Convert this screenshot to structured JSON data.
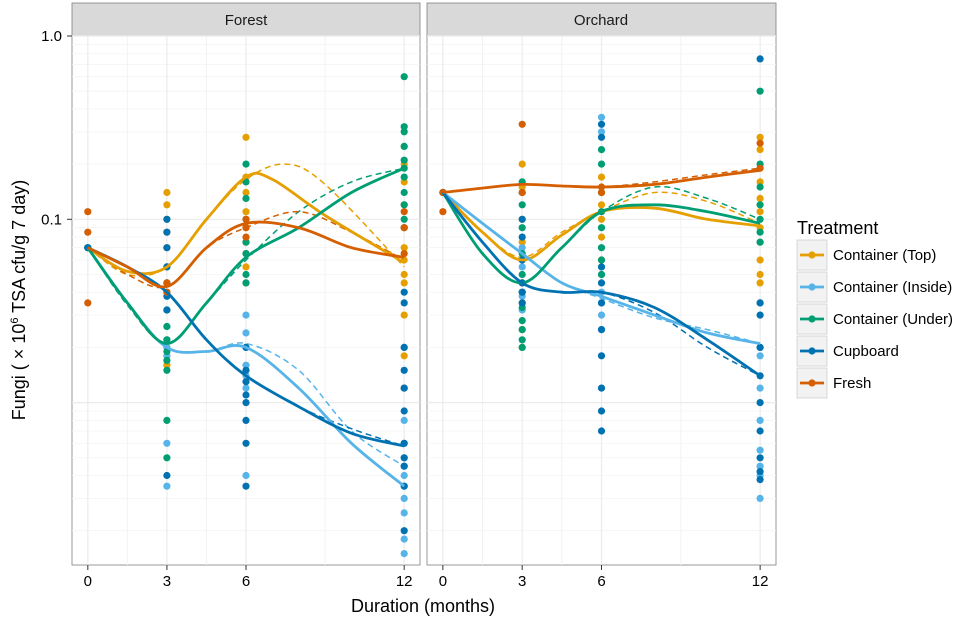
{
  "chart_data": {
    "type": "scatter",
    "facets": [
      "Forest",
      "Orchard"
    ],
    "xlabel": "Duration (months)",
    "ylabel_prefix": "Fungi ( × 10",
    "ylabel_exponent": "6",
    "ylabel_suffix": " TSA cfu/g 7 day)",
    "x_ticks": [
      0,
      3,
      6,
      12
    ],
    "y_ticks": [
      1.0,
      0.1
    ],
    "y_tick_labels": [
      "1.0",
      "0.1"
    ],
    "y_scale": "log",
    "xlim": [
      -0.6,
      12.6
    ],
    "ylim": [
      0.0013,
      1.0
    ],
    "grid": true,
    "legend_title": "Treatment",
    "legend_position": "right",
    "series": [
      {
        "name": "Container (Top)",
        "color": "#E69F00",
        "points": {
          "Forest": {
            "0": [
              0.07
            ],
            "3": [
              0.14,
              0.12,
              0.1,
              0.085,
              0.07,
              0.055,
              0.045,
              0.02,
              0.018,
              0.016
            ],
            "6": [
              0.28,
              0.17,
              0.14,
              0.11,
              0.09,
              0.075,
              0.065,
              0.055,
              0.045
            ],
            "12": [
              0.25,
              0.2,
              0.16,
              0.12,
              0.09,
              0.07,
              0.06,
              0.05,
              0.045,
              0.03,
              0.018,
              0.012
            ]
          },
          "Orchard": {
            "0": [
              0.14
            ],
            "3": [
              0.2,
              0.15,
              0.1,
              0.075,
              0.06,
              0.045,
              0.035,
              0.025,
              0.02
            ],
            "6": [
              0.17,
              0.14,
              0.12,
              0.1,
              0.08,
              0.06,
              0.05
            ],
            "12": [
              0.28,
              0.24,
              0.16,
              0.13,
              0.11,
              0.09,
              0.075,
              0.06,
              0.05,
              0.045
            ]
          }
        },
        "fit_solid": [
          [
            0,
            0.07
          ],
          [
            1.5,
            0.052
          ],
          [
            3,
            0.055
          ],
          [
            4.5,
            0.1
          ],
          [
            6,
            0.17
          ],
          [
            7,
            0.165
          ],
          [
            9,
            0.105
          ],
          [
            12,
            0.058
          ]
        ],
        "fit_dashed": [
          [
            0,
            0.07
          ],
          [
            1.5,
            0.05
          ],
          [
            3,
            0.055
          ],
          [
            4.5,
            0.1
          ],
          [
            6,
            0.165
          ],
          [
            7.5,
            0.2
          ],
          [
            9,
            0.155
          ],
          [
            12,
            0.055
          ]
        ],
        "fit_solid_orchard": [
          [
            0,
            0.14
          ],
          [
            1.5,
            0.085
          ],
          [
            3,
            0.06
          ],
          [
            4.5,
            0.082
          ],
          [
            6,
            0.11
          ],
          [
            8,
            0.115
          ],
          [
            10,
            0.1
          ],
          [
            12,
            0.092
          ]
        ],
        "fit_dashed_orchard": [
          [
            0,
            0.14
          ],
          [
            1.5,
            0.085
          ],
          [
            3,
            0.062
          ],
          [
            4.5,
            0.085
          ],
          [
            6,
            0.11
          ],
          [
            8,
            0.14
          ],
          [
            10,
            0.125
          ],
          [
            12,
            0.095
          ]
        ]
      },
      {
        "name": "Container (Inside)",
        "color": "#56B4E9",
        "points": {
          "Forest": {
            "0": [
              0.07
            ],
            "3": [
              0.04,
              0.032,
              0.026,
              0.022,
              0.02,
              0.018,
              0.006,
              0.0035
            ],
            "6": [
              0.03,
              0.024,
              0.02,
              0.016,
              0.014,
              0.012,
              0.004
            ],
            "12": [
              0.02,
              0.012,
              0.008,
              0.006,
              0.005,
              0.0045,
              0.004,
              0.0035,
              0.003,
              0.0025,
              0.0018,
              0.0015
            ]
          },
          "Orchard": {
            "0": [
              0.14
            ],
            "3": [
              0.07,
              0.055,
              0.045,
              0.038,
              0.032
            ],
            "6": [
              0.36,
              0.3,
              0.05,
              0.04,
              0.035,
              0.03,
              0.025
            ],
            "12": [
              0.035,
              0.02,
              0.018,
              0.012,
              0.008,
              0.0055,
              0.0045,
              0.004,
              0.003
            ]
          }
        },
        "fit_solid": [
          [
            0,
            0.07
          ],
          [
            1.5,
            0.035
          ],
          [
            3,
            0.02
          ],
          [
            4.5,
            0.019
          ],
          [
            6,
            0.02
          ],
          [
            8,
            0.012
          ],
          [
            10,
            0.006
          ],
          [
            12,
            0.0035
          ]
        ],
        "fit_dashed": [
          [
            0,
            0.07
          ],
          [
            1.5,
            0.035
          ],
          [
            3,
            0.02
          ],
          [
            4.5,
            0.019
          ],
          [
            6,
            0.021
          ],
          [
            8,
            0.015
          ],
          [
            10,
            0.007
          ],
          [
            12,
            0.0045
          ]
        ],
        "fit_solid_orchard": [
          [
            0,
            0.14
          ],
          [
            1.5,
            0.095
          ],
          [
            3,
            0.065
          ],
          [
            4.5,
            0.045
          ],
          [
            6,
            0.038
          ],
          [
            8,
            0.03
          ],
          [
            10,
            0.024
          ],
          [
            12,
            0.021
          ]
        ],
        "fit_dashed_orchard": [
          [
            0,
            0.14
          ],
          [
            1.5,
            0.095
          ],
          [
            3,
            0.065
          ],
          [
            4.5,
            0.045
          ],
          [
            6,
            0.037
          ],
          [
            8,
            0.029
          ],
          [
            10,
            0.025
          ],
          [
            12,
            0.021
          ]
        ]
      },
      {
        "name": "Container (Under)",
        "color": "#009E73",
        "points": {
          "Forest": {
            "0": [
              0.07
            ],
            "3": [
              0.032,
              0.026,
              0.022,
              0.019,
              0.017,
              0.015,
              0.008,
              0.005
            ],
            "6": [
              0.2,
              0.16,
              0.13,
              0.1,
              0.075,
              0.065,
              0.05,
              0.045
            ],
            "12": [
              0.6,
              0.32,
              0.3,
              0.25,
              0.21,
              0.19,
              0.17,
              0.14,
              0.12,
              0.1,
              0.09
            ]
          },
          "Orchard": {
            "0": [
              0.14
            ],
            "3": [
              0.16,
              0.12,
              0.09,
              0.065,
              0.05,
              0.04,
              0.033,
              0.028,
              0.025,
              0.022,
              0.02
            ],
            "6": [
              0.24,
              0.2,
              0.14,
              0.11,
              0.09,
              0.07,
              0.06,
              0.05
            ],
            "12": [
              0.5,
              0.2,
              0.15,
              0.12,
              0.1,
              0.085,
              0.075
            ]
          }
        },
        "fit_solid": [
          [
            0,
            0.07
          ],
          [
            1.5,
            0.035
          ],
          [
            3,
            0.021
          ],
          [
            4.5,
            0.035
          ],
          [
            6,
            0.062
          ],
          [
            8,
            0.09
          ],
          [
            10,
            0.14
          ],
          [
            12,
            0.19
          ]
        ],
        "fit_dashed": [
          [
            0,
            0.07
          ],
          [
            1.5,
            0.034
          ],
          [
            3,
            0.021
          ],
          [
            4.5,
            0.035
          ],
          [
            6,
            0.06
          ],
          [
            8,
            0.11
          ],
          [
            10,
            0.16
          ],
          [
            12,
            0.19
          ]
        ],
        "fit_solid_orchard": [
          [
            0,
            0.14
          ],
          [
            1.5,
            0.065
          ],
          [
            3,
            0.045
          ],
          [
            4.5,
            0.07
          ],
          [
            6,
            0.11
          ],
          [
            8,
            0.12
          ],
          [
            10,
            0.11
          ],
          [
            12,
            0.095
          ]
        ],
        "fit_dashed_orchard": [
          [
            0,
            0.14
          ],
          [
            1.5,
            0.065
          ],
          [
            3,
            0.045
          ],
          [
            4.5,
            0.07
          ],
          [
            6,
            0.11
          ],
          [
            8,
            0.15
          ],
          [
            10,
            0.13
          ],
          [
            12,
            0.1
          ]
        ]
      },
      {
        "name": "Cupboard",
        "color": "#0072B2",
        "points": {
          "Forest": {
            "0": [
              0.07
            ],
            "3": [
              0.1,
              0.085,
              0.07,
              0.055,
              0.045,
              0.038,
              0.032,
              0.004
            ],
            "6": [
              0.02,
              0.015,
              0.013,
              0.011,
              0.01,
              0.008,
              0.006,
              0.0035
            ],
            "12": [
              0.04,
              0.035,
              0.02,
              0.015,
              0.012,
              0.009,
              0.006,
              0.005,
              0.0045,
              0.0035,
              0.002
            ]
          },
          "Orchard": {
            "0": [
              0.14
            ],
            "3": [
              0.14,
              0.1,
              0.08,
              0.06,
              0.045,
              0.04,
              0.035
            ],
            "6": [
              0.33,
              0.28,
              0.055,
              0.045,
              0.035,
              0.025,
              0.018,
              0.012,
              0.009,
              0.007
            ],
            "12": [
              0.75,
              0.035,
              0.03,
              0.02,
              0.014,
              0.01,
              0.007,
              0.005,
              0.0042,
              0.0038
            ]
          }
        },
        "fit_solid": [
          [
            0,
            0.07
          ],
          [
            1.5,
            0.055
          ],
          [
            3,
            0.04
          ],
          [
            4.5,
            0.022
          ],
          [
            6,
            0.014
          ],
          [
            8,
            0.0095
          ],
          [
            10,
            0.0068
          ],
          [
            12,
            0.0058
          ]
        ],
        "fit_dashed": [
          [
            0,
            0.07
          ],
          [
            1.5,
            0.055
          ],
          [
            3,
            0.04
          ],
          [
            4.5,
            0.022
          ],
          [
            6,
            0.014
          ],
          [
            8,
            0.0095
          ],
          [
            10,
            0.0072
          ],
          [
            12,
            0.0058
          ]
        ],
        "fit_solid_orchard": [
          [
            0,
            0.14
          ],
          [
            1.5,
            0.075
          ],
          [
            3,
            0.045
          ],
          [
            4.5,
            0.04
          ],
          [
            6,
            0.04
          ],
          [
            8,
            0.033
          ],
          [
            10,
            0.022
          ],
          [
            12,
            0.014
          ]
        ],
        "fit_dashed_orchard": [
          [
            0,
            0.14
          ],
          [
            1.5,
            0.075
          ],
          [
            3,
            0.045
          ],
          [
            4.5,
            0.04
          ],
          [
            6,
            0.04
          ],
          [
            8,
            0.031
          ],
          [
            10,
            0.02
          ],
          [
            12,
            0.014
          ]
        ]
      },
      {
        "name": "Fresh",
        "color": "#D55E00",
        "points": {
          "Forest": {
            "0": [
              0.11,
              0.085,
              0.035
            ],
            "3": [
              0.045,
              0.04
            ],
            "6": [
              0.1,
              0.09,
              0.08
            ],
            "12": [
              0.11,
              0.09,
              0.065
            ]
          },
          "Orchard": {
            "0": [
              0.14,
              0.11
            ],
            "3": [
              0.33,
              0.14
            ],
            "6": [
              0.15,
              0.14
            ],
            "12": [
              0.26,
              0.19
            ]
          }
        },
        "fit_solid": [
          [
            0,
            0.07
          ],
          [
            1.5,
            0.055
          ],
          [
            3,
            0.043
          ],
          [
            4.5,
            0.07
          ],
          [
            6,
            0.095
          ],
          [
            8,
            0.09
          ],
          [
            10,
            0.07
          ],
          [
            12,
            0.062
          ]
        ],
        "fit_dashed": [
          [
            0,
            0.07
          ],
          [
            1.5,
            0.05
          ],
          [
            3,
            0.043
          ],
          [
            4.5,
            0.07
          ],
          [
            6,
            0.09
          ],
          [
            8,
            0.11
          ],
          [
            10,
            0.085
          ],
          [
            12,
            0.06
          ]
        ],
        "fit_solid_orchard": [
          [
            0,
            0.14
          ],
          [
            1.5,
            0.148
          ],
          [
            3,
            0.155
          ],
          [
            4.5,
            0.152
          ],
          [
            6,
            0.15
          ],
          [
            8,
            0.155
          ],
          [
            10,
            0.17
          ],
          [
            12,
            0.185
          ]
        ],
        "fit_dashed_orchard": [
          [
            0,
            0.14
          ],
          [
            1.5,
            0.148
          ],
          [
            3,
            0.155
          ],
          [
            4.5,
            0.152
          ],
          [
            6,
            0.15
          ],
          [
            8,
            0.16
          ],
          [
            10,
            0.175
          ],
          [
            12,
            0.19
          ]
        ]
      }
    ]
  }
}
